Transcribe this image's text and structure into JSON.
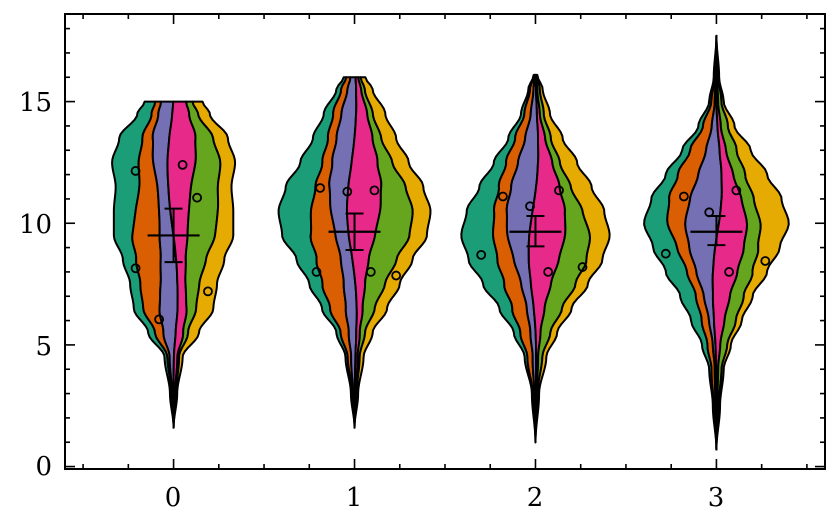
{
  "chart_data": {
    "type": "violin",
    "title": "",
    "xlabel": "",
    "ylabel": "",
    "xlim": [
      -0.6,
      3.6
    ],
    "ylim": [
      -0.1,
      18.6
    ],
    "grid": false,
    "xticks": [
      0,
      1,
      2,
      3
    ],
    "xtick_labels": [
      "0",
      "1",
      "2",
      "3"
    ],
    "yticks": [
      0,
      5,
      10,
      15
    ],
    "ytick_labels": [
      "0",
      "5",
      "10",
      "15"
    ],
    "y_minor_step": 1,
    "x_minor_step": 0.25,
    "layer_colors": [
      "#1b9e77",
      "#d95f02",
      "#7570b3",
      "#e7298a",
      "#66a61e",
      "#e6ab02"
    ],
    "violins": [
      {
        "position": 0,
        "profile": [
          [
            1.6,
            0.0
          ],
          [
            3.0,
            0.02
          ],
          [
            4.5,
            0.05
          ],
          [
            5.5,
            0.14
          ],
          [
            6.5,
            0.22
          ],
          [
            7.5,
            0.24
          ],
          [
            8.5,
            0.28
          ],
          [
            9.5,
            0.33
          ],
          [
            10.5,
            0.33
          ],
          [
            11.5,
            0.32
          ],
          [
            12.5,
            0.34
          ],
          [
            13.5,
            0.3
          ],
          [
            14.5,
            0.2
          ],
          [
            15.0,
            0.16
          ]
        ],
        "points": [
          [
            -0.21,
            8.15
          ],
          [
            -0.21,
            12.15
          ],
          [
            0.05,
            12.4
          ],
          [
            0.13,
            11.05
          ],
          [
            -0.08,
            6.05
          ],
          [
            0.19,
            7.2
          ]
        ],
        "mean": 9.5,
        "err_low": 8.4,
        "err_high": 10.6
      },
      {
        "position": 1,
        "profile": [
          [
            1.6,
            0.0
          ],
          [
            3.0,
            0.02
          ],
          [
            4.5,
            0.05
          ],
          [
            5.5,
            0.1
          ],
          [
            6.5,
            0.18
          ],
          [
            7.5,
            0.25
          ],
          [
            8.5,
            0.32
          ],
          [
            9.5,
            0.4
          ],
          [
            10.5,
            0.42
          ],
          [
            11.5,
            0.38
          ],
          [
            12.5,
            0.3
          ],
          [
            13.5,
            0.23
          ],
          [
            14.5,
            0.17
          ],
          [
            15.5,
            0.1
          ],
          [
            16.0,
            0.06
          ]
        ],
        "points": [
          [
            -0.21,
            8.0
          ],
          [
            -0.19,
            11.45
          ],
          [
            -0.04,
            11.3
          ],
          [
            0.11,
            11.35
          ],
          [
            0.09,
            8.0
          ],
          [
            0.23,
            7.85
          ]
        ],
        "mean": 9.65,
        "err_low": 8.9,
        "err_high": 10.4
      },
      {
        "position": 2,
        "profile": [
          [
            1.0,
            0.0
          ],
          [
            3.0,
            0.02
          ],
          [
            4.5,
            0.06
          ],
          [
            5.5,
            0.12
          ],
          [
            6.5,
            0.2
          ],
          [
            7.5,
            0.29
          ],
          [
            8.5,
            0.37
          ],
          [
            9.5,
            0.41
          ],
          [
            10.5,
            0.38
          ],
          [
            11.5,
            0.31
          ],
          [
            12.5,
            0.23
          ],
          [
            13.5,
            0.15
          ],
          [
            14.5,
            0.08
          ],
          [
            15.5,
            0.04
          ],
          [
            16.1,
            0.01
          ]
        ],
        "points": [
          [
            -0.3,
            8.7
          ],
          [
            -0.18,
            11.1
          ],
          [
            -0.03,
            10.7
          ],
          [
            0.13,
            11.35
          ],
          [
            0.07,
            8.0
          ],
          [
            0.26,
            8.2
          ]
        ],
        "mean": 9.65,
        "err_low": 9.05,
        "err_high": 10.3
      },
      {
        "position": 3,
        "profile": [
          [
            0.7,
            0.0
          ],
          [
            2.5,
            0.02
          ],
          [
            4.0,
            0.04
          ],
          [
            5.0,
            0.08
          ],
          [
            6.0,
            0.14
          ],
          [
            7.0,
            0.2
          ],
          [
            8.0,
            0.28
          ],
          [
            9.0,
            0.35
          ],
          [
            10.0,
            0.4
          ],
          [
            11.0,
            0.36
          ],
          [
            12.0,
            0.28
          ],
          [
            13.0,
            0.19
          ],
          [
            14.0,
            0.1
          ],
          [
            15.0,
            0.04
          ],
          [
            16.0,
            0.015
          ],
          [
            17.7,
            0.0
          ]
        ],
        "points": [
          [
            -0.28,
            8.75
          ],
          [
            -0.18,
            11.1
          ],
          [
            -0.04,
            10.45
          ],
          [
            0.11,
            11.35
          ],
          [
            0.07,
            8.0
          ],
          [
            0.27,
            8.45
          ]
        ],
        "mean": 9.65,
        "err_low": 9.1,
        "err_high": 10.3
      }
    ]
  }
}
